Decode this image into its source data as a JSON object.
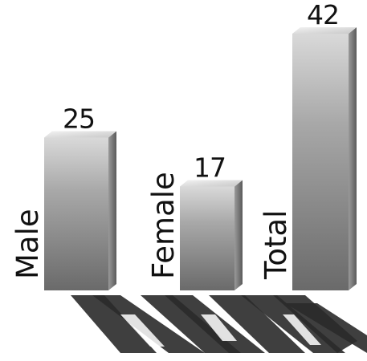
{
  "chart_data": {
    "type": "bar",
    "style": "3d",
    "categories": [
      "Male",
      "Female",
      "Total"
    ],
    "values": [
      25,
      17,
      42
    ],
    "data_labels": [
      "25",
      "17",
      "42"
    ],
    "title": "",
    "xlabel": "",
    "ylabel": "",
    "ylim": [
      0,
      42
    ],
    "grid": false,
    "legend": "none",
    "bar_color": "#9a9a9a",
    "shadow_color": "#2a2a2a"
  }
}
